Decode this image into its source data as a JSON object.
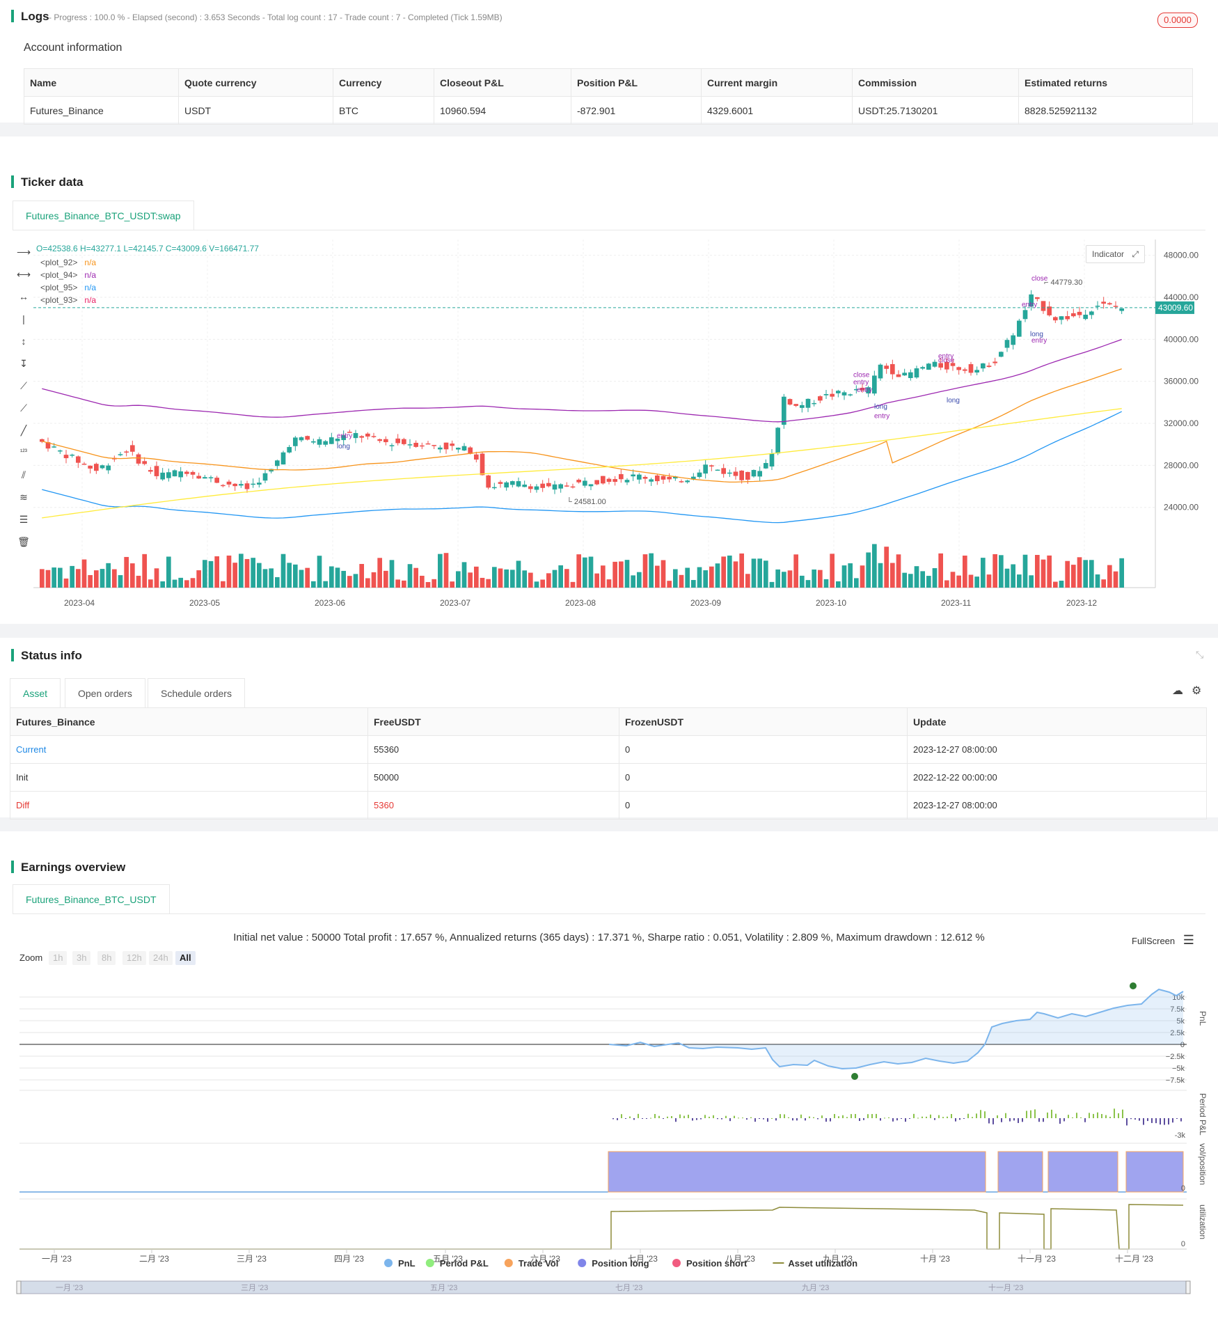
{
  "logs": {
    "title": "Logs",
    "progress": "- Progress : 100.0 % - Elapsed (second) : 3.653  Seconds - Total log count : 17 - Trade count : 7 - Completed (Tick 1.59MB)",
    "badge": "0.0000"
  },
  "account": {
    "title": "Account information",
    "headers": [
      "Name",
      "Quote currency",
      "Currency",
      "Closeout P&L",
      "Position P&L",
      "Current margin",
      "Commission",
      "Estimated returns"
    ],
    "row": [
      "Futures_Binance",
      "USDT",
      "BTC",
      "10960.594",
      "-872.901",
      "4329.6001",
      "USDT:25.7130201",
      "8828.525921132"
    ]
  },
  "ticker": {
    "title": "Ticker data",
    "tab": "Futures_Binance_BTC_USDT:swap",
    "ohlc": "O=42538.6 H=43277.1 L=42145.7 C=43009.6 V=166471.77",
    "legend": [
      {
        "name": "<plot_92>",
        "value": "n/a",
        "color": "#f7931a"
      },
      {
        "name": "<plot_94>",
        "value": "n/a",
        "color": "#9c27b0"
      },
      {
        "name": "<plot_95>",
        "value": "n/a",
        "color": "#2196f3"
      },
      {
        "name": "<plot_93>",
        "value": "n/a",
        "color": "#e91e63"
      }
    ],
    "indicator_btn": "Indicator",
    "price_label": "43009.60",
    "high_label": "44779.30",
    "low_label": "24581.00",
    "y_ticks": [
      "48000.00",
      "44000.00",
      "40000.00",
      "36000.00",
      "32000.00",
      "28000.00",
      "24000.00"
    ],
    "x_ticks": [
      "2023-04",
      "2023-05",
      "2023-06",
      "2023-07",
      "2023-08",
      "2023-09",
      "2023-10",
      "2023-11",
      "2023-12"
    ],
    "annotations": [
      "entry",
      "long",
      "close",
      "entry",
      "close",
      "entry",
      "long",
      "1",
      "entry",
      "close",
      "long",
      "entry",
      "long",
      "close",
      "entry",
      "long",
      "1"
    ]
  },
  "status": {
    "title": "Status info",
    "tabs": [
      "Asset",
      "Open orders",
      "Schedule orders"
    ],
    "headers": [
      "Futures_Binance",
      "FreeUSDT",
      "FrozenUSDT",
      "Update"
    ],
    "rows": [
      [
        "Current",
        "55360",
        "0",
        "2023-12-27 08:00:00"
      ],
      [
        "Init",
        "50000",
        "0",
        "2022-12-22 00:00:00"
      ],
      [
        "Diff",
        "5360",
        "0",
        "2023-12-27 08:00:00"
      ]
    ]
  },
  "earnings": {
    "title": "Earnings overview",
    "tab": "Futures_Binance_BTC_USDT",
    "summary": "Initial net value : 50000 Total profit : 17.657 %, Annualized returns (365 days) : 17.371 %, Sharpe ratio : 0.051, Volatility : 2.809 %, Maximum drawdown : 12.612 %",
    "fullscreen": "FullScreen",
    "zoom_label": "Zoom",
    "zoom_buttons": [
      "1h",
      "3h",
      "8h",
      "12h",
      "24h",
      "All"
    ],
    "pnl_ticks": [
      "10k",
      "7.5k",
      "5k",
      "2.5k",
      "0",
      "−2.5k",
      "−5k",
      "−7.5k"
    ],
    "axis_labels": [
      "PnL",
      "Period P&L",
      "vol/position",
      "utilization"
    ],
    "period_tick": "-3k",
    "zero": "0",
    "months": [
      "一月 '23",
      "二月 '23",
      "三月 '23",
      "四月 '23",
      "五月 '23",
      "六月 '23",
      "七月 '23",
      "八月 '23",
      "九月 '23",
      "十月 '23",
      "十一月 '23",
      "十二月 '23"
    ],
    "nav_months": [
      "一月 '23",
      "三月 '23",
      "五月 '23",
      "七月 '23",
      "九月 '23",
      "十一月 '23"
    ],
    "legend": [
      {
        "name": "PnL",
        "color": "#7cb5ec"
      },
      {
        "name": "Period P&L",
        "color": "#90ed7d"
      },
      {
        "name": "Trade Vol",
        "color": "#f7a35c"
      },
      {
        "name": "Position long",
        "color": "#8085e9"
      },
      {
        "name": "Position short",
        "color": "#f15c80"
      },
      {
        "name": "Asset utilization",
        "color": "#8d8b3a"
      }
    ]
  },
  "colors": {
    "accent": "#1aa27a",
    "up": "#26a69a",
    "down": "#ef5350",
    "diff": "#e53935"
  }
}
